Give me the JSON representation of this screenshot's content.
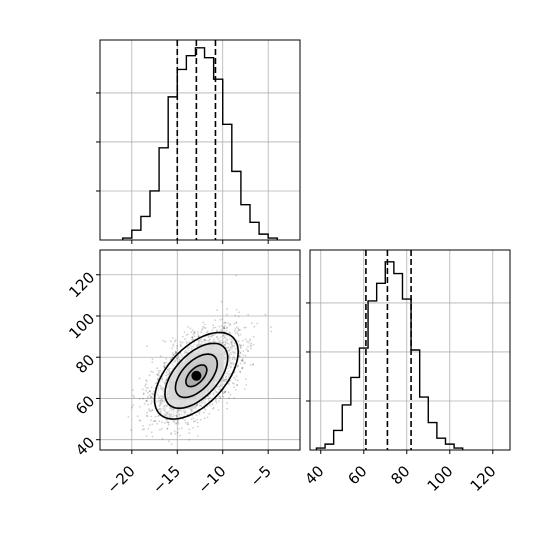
{
  "chart_data": [
    {
      "type": "histogram",
      "panel": "top-left",
      "variable_index": 0,
      "xlim": [
        -23.5,
        -1.5
      ],
      "grid": true,
      "bin_edges": [
        -21,
        -20,
        -19,
        -18,
        -17,
        -16,
        -15,
        -14,
        -13,
        -12,
        -11,
        -10,
        -9,
        -8,
        -7,
        -6,
        -5,
        -4
      ],
      "counts": [
        0.01,
        0.05,
        0.12,
        0.25,
        0.47,
        0.73,
        0.87,
        0.94,
        0.98,
        0.93,
        0.82,
        0.59,
        0.35,
        0.18,
        0.09,
        0.03,
        0.01
      ],
      "quantile_lines": [
        -15.0,
        -12.9,
        -10.8
      ],
      "y_tick_fractions": [
        0.25,
        0.5,
        0.75
      ]
    },
    {
      "type": "histogram",
      "panel": "bottom-right",
      "variable_index": 1,
      "xlim": [
        35,
        128
      ],
      "grid": true,
      "x_tick_labels": [
        "40",
        "60",
        "80",
        "100",
        "120"
      ],
      "x_ticks": [
        40,
        60,
        80,
        100,
        120
      ],
      "bin_edges": [
        38,
        42,
        46,
        50,
        54,
        58,
        62,
        66,
        70,
        74,
        78,
        82,
        86,
        90,
        94,
        98,
        102,
        106
      ],
      "counts": [
        0.01,
        0.03,
        0.1,
        0.23,
        0.37,
        0.52,
        0.76,
        0.85,
        0.96,
        0.9,
        0.77,
        0.51,
        0.27,
        0.14,
        0.06,
        0.03,
        0.01
      ],
      "quantile_lines": [
        61,
        71,
        82
      ],
      "y_tick_fractions": [
        0.25,
        0.5,
        0.75
      ]
    },
    {
      "type": "scatter",
      "panel": "bottom-left",
      "variables": [
        0,
        1
      ],
      "xlim": [
        -23.5,
        -1.5
      ],
      "ylim": [
        35,
        132
      ],
      "grid": true,
      "x_tick_labels": [
        "−20",
        "−15",
        "−10",
        "−5"
      ],
      "x_ticks": [
        -20,
        -15,
        -10,
        -5
      ],
      "y_tick_labels": [
        "40",
        "60",
        "80",
        "100",
        "120"
      ],
      "y_ticks": [
        40,
        60,
        80,
        100,
        120
      ],
      "mean": [
        -12.9,
        71
      ],
      "std": [
        2.3,
        10.5
      ],
      "correlation": 0.55,
      "contour_sigmas": [
        0.5,
        1.0,
        1.5,
        2.0
      ],
      "n_points": 3000
    }
  ]
}
